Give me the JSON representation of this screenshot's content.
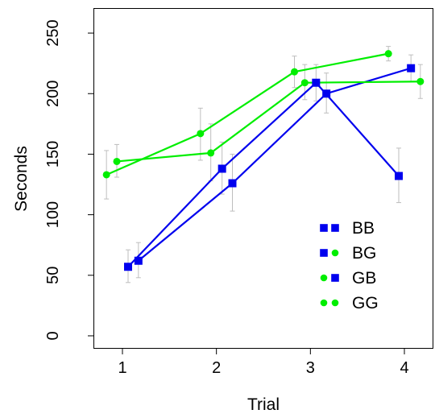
{
  "chart_data": {
    "type": "line",
    "title": "",
    "xlabel": "Trial",
    "ylabel": "Seconds",
    "xlim": [
      0.7,
      4.3
    ],
    "ylim": [
      -10,
      270
    ],
    "x_ticks": [
      1,
      2,
      3,
      4
    ],
    "y_ticks": [
      0,
      50,
      100,
      150,
      200,
      250
    ],
    "grid": false,
    "legend_position": "lower-right",
    "colors": {
      "blue": "#0000EE",
      "green": "#00EE00",
      "errorbar": "#BEBEBE"
    },
    "series": [
      {
        "name": "BB",
        "line_color": "blue",
        "marker": "square",
        "marker_color": "blue",
        "x": [
          1.17,
          2.17,
          3.17,
          4.07
        ],
        "y": [
          62,
          126,
          200,
          221
        ],
        "err_low": [
          48,
          103,
          184,
          210
        ],
        "err_high": [
          77,
          150,
          217,
          232
        ]
      },
      {
        "name": "BG",
        "line_color": "blue",
        "marker": "square",
        "marker_color": "blue",
        "x": [
          1.06,
          2.06,
          3.06,
          3.94
        ],
        "y": [
          57,
          138,
          209,
          132
        ],
        "err_low": [
          44,
          117,
          194,
          110
        ],
        "err_high": [
          71,
          160,
          224,
          155
        ]
      },
      {
        "name": "GB",
        "line_color": "green",
        "marker": "circle",
        "marker_color": "green",
        "x": [
          0.94,
          1.94,
          2.94,
          4.17
        ],
        "y": [
          144,
          151,
          209,
          210
        ],
        "err_low": [
          131,
          128,
          195,
          196
        ],
        "err_high": [
          158,
          175,
          224,
          224
        ]
      },
      {
        "name": "GG",
        "line_color": "green",
        "marker": "circle",
        "marker_color": "green",
        "x": [
          0.83,
          1.83,
          2.83,
          3.83
        ],
        "y": [
          133,
          167,
          218,
          233
        ],
        "err_low": [
          113,
          145,
          205,
          227
        ],
        "err_high": [
          153,
          188,
          231,
          239
        ]
      }
    ],
    "legend": [
      {
        "label": "BB",
        "swatches": [
          {
            "shape": "square",
            "color": "blue"
          },
          {
            "shape": "square",
            "color": "blue"
          }
        ]
      },
      {
        "label": "BG",
        "swatches": [
          {
            "shape": "square",
            "color": "blue"
          },
          {
            "shape": "circle",
            "color": "green"
          }
        ]
      },
      {
        "label": "GB",
        "swatches": [
          {
            "shape": "circle",
            "color": "green"
          },
          {
            "shape": "square",
            "color": "blue"
          }
        ]
      },
      {
        "label": "GG",
        "swatches": [
          {
            "shape": "circle",
            "color": "green"
          },
          {
            "shape": "circle",
            "color": "green"
          }
        ]
      }
    ]
  }
}
